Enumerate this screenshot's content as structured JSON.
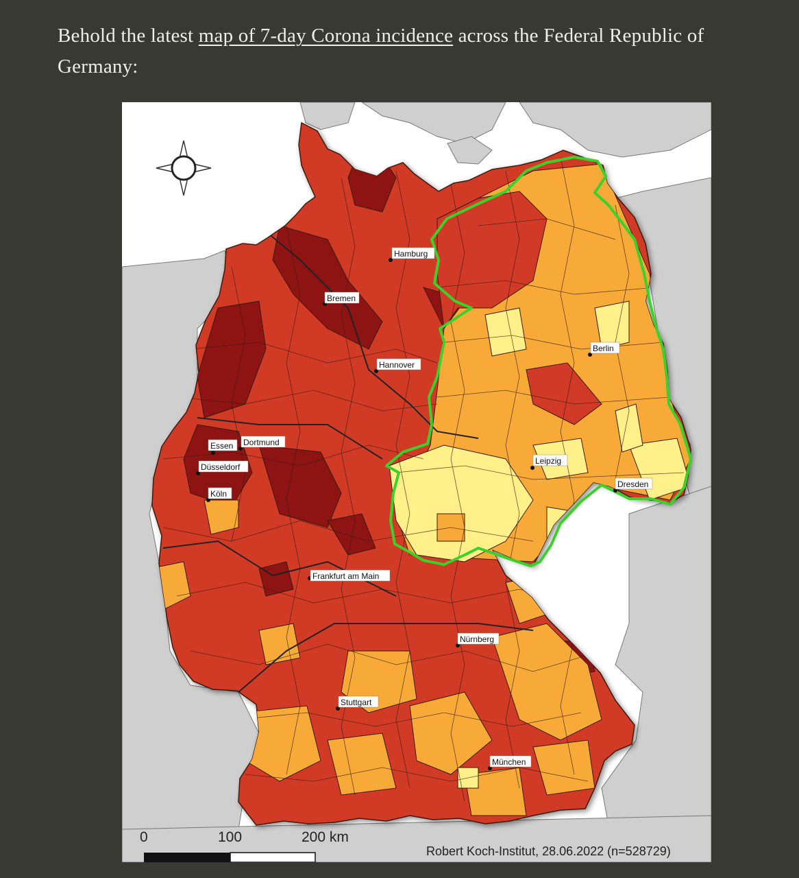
{
  "intro": {
    "before_link": "Behold the latest ",
    "link_text": "map of 7-day Corona incidence",
    "after_link": " across the Federal Republic of Germany:"
  },
  "map": {
    "cities": [
      {
        "name": "Hamburg"
      },
      {
        "name": "Bremen"
      },
      {
        "name": "Berlin"
      },
      {
        "name": "Hannover"
      },
      {
        "name": "Essen"
      },
      {
        "name": "Dortmund"
      },
      {
        "name": "Düsseldorf"
      },
      {
        "name": "Köln"
      },
      {
        "name": "Leipzig"
      },
      {
        "name": "Dresden"
      },
      {
        "name": "Frankfurt am Main"
      },
      {
        "name": "Nürnberg"
      },
      {
        "name": "Stuttgart"
      },
      {
        "name": "München"
      }
    ],
    "scale_bar": {
      "label_0": "0",
      "label_100": "100",
      "label_200": "200 km"
    },
    "credit": "Robert Koch-Institut, 28.06.2022 (n=528729)",
    "colors": {
      "very_high": "#8e1414",
      "high": "#d13a26",
      "medium": "#f7aa38",
      "low": "#fff08a",
      "highlight_outline": "#3ad12a",
      "neighbor_land": "#cfcfcf",
      "sea": "#ffffff"
    },
    "icons": [
      "compass-rose-icon"
    ]
  }
}
